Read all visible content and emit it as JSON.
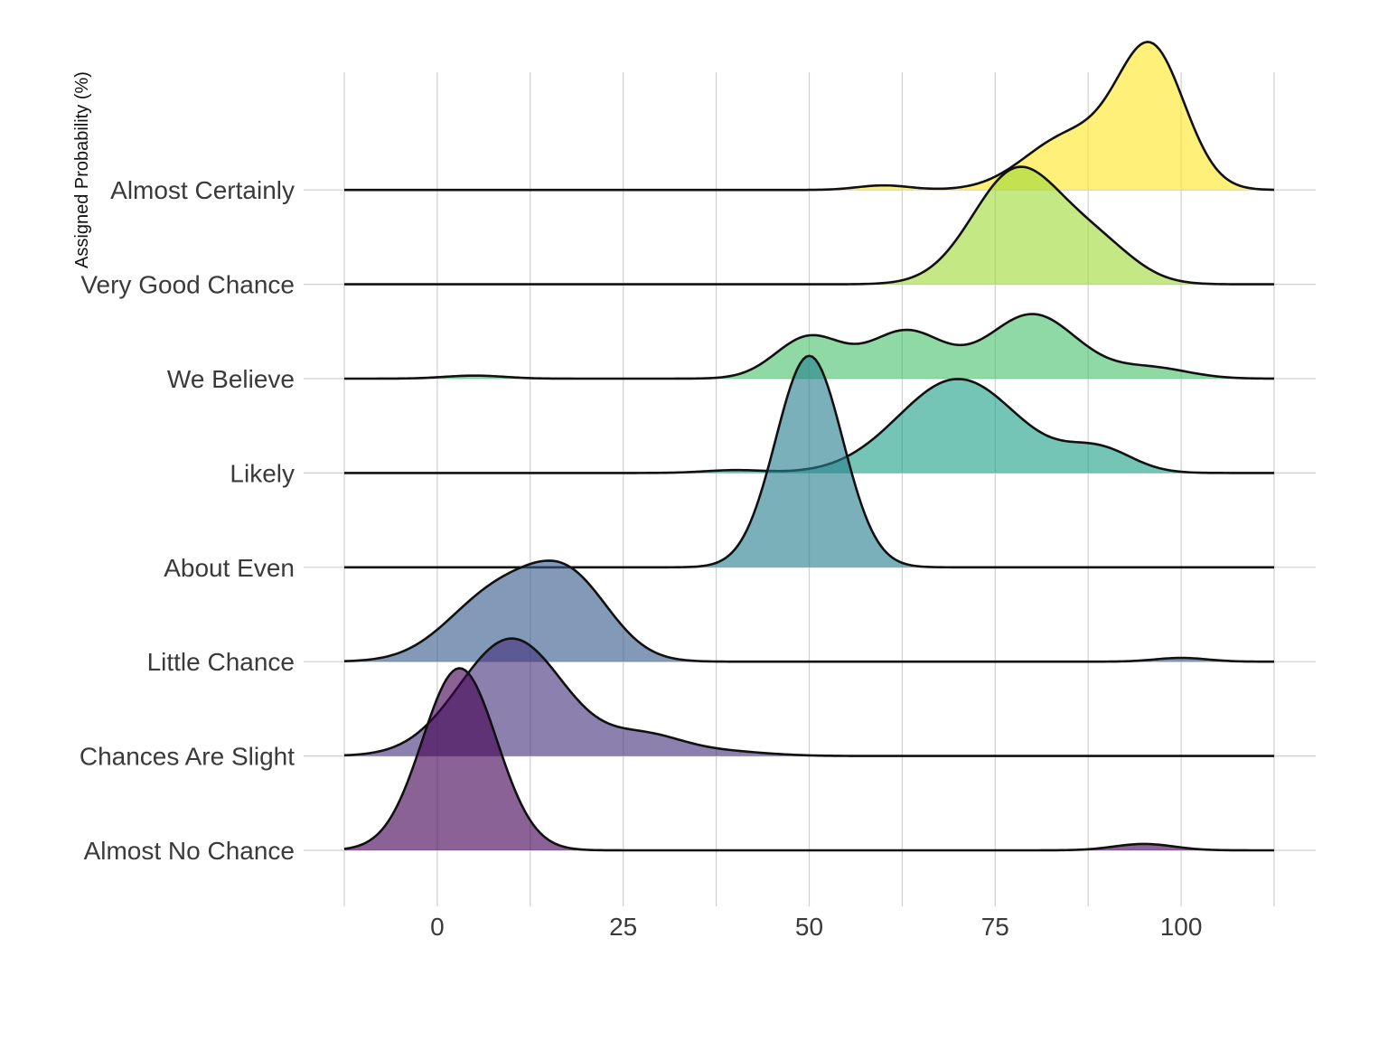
{
  "chart_data": {
    "type": "ridgeline",
    "title": "",
    "xlabel": "",
    "ylabel": "Assigned Probability (%)",
    "xlim": [
      -12.5,
      112.5
    ],
    "x_ticks": [
      0,
      25,
      50,
      75,
      100
    ],
    "x_tick_labels": [
      "0",
      "25",
      "50",
      "75",
      "100"
    ],
    "grid": true,
    "legend": "none",
    "categories": [
      "Almost No Chance",
      "Chances Are Slight",
      "Little Chance",
      "About Even",
      "Likely",
      "We Believe",
      "Very Good Chance",
      "Almost Certainly"
    ],
    "colors": [
      "#440154",
      "#46327e",
      "#365c8d",
      "#277f8e",
      "#1fa187",
      "#4ac16d",
      "#a0da39",
      "#fde725"
    ],
    "series": [
      {
        "name": "Almost No Chance",
        "peak_height": 1.55,
        "components": [
          {
            "mu": 3,
            "sd": 5,
            "w": 1.0
          },
          {
            "mu": 95,
            "sd": 4,
            "w": 0.035
          }
        ]
      },
      {
        "name": "Chances Are Slight",
        "peak_height": 1.0,
        "components": [
          {
            "mu": 10,
            "sd": 7,
            "w": 1.0
          },
          {
            "mu": 28,
            "sd": 5,
            "w": 0.16
          },
          {
            "mu": 38,
            "sd": 6,
            "w": 0.04
          }
        ]
      },
      {
        "name": "Little Chance",
        "peak_height": 0.86,
        "components": [
          {
            "mu": 8,
            "sd": 6.5,
            "w": 0.72
          },
          {
            "mu": 18,
            "sd": 5.5,
            "w": 0.78
          },
          {
            "mu": 100,
            "sd": 3.5,
            "w": 0.04
          }
        ]
      },
      {
        "name": "About Even",
        "peak_height": 1.8,
        "components": [
          {
            "mu": 50,
            "sd": 4.5,
            "w": 1.0
          }
        ]
      },
      {
        "name": "Likely",
        "peak_height": 0.8,
        "components": [
          {
            "mu": 40,
            "sd": 4,
            "w": 0.03
          },
          {
            "mu": 70,
            "sd": 8,
            "w": 1.0
          },
          {
            "mu": 89,
            "sd": 4.5,
            "w": 0.24
          }
        ]
      },
      {
        "name": "We Believe",
        "peak_height": 0.55,
        "components": [
          {
            "mu": 5,
            "sd": 4,
            "w": 0.04
          },
          {
            "mu": 50,
            "sd": 4.5,
            "w": 0.55
          },
          {
            "mu": 63,
            "sd": 5,
            "w": 0.62
          },
          {
            "mu": 80,
            "sd": 6,
            "w": 0.85
          },
          {
            "mu": 96,
            "sd": 5,
            "w": 0.14
          }
        ]
      },
      {
        "name": "Very Good Chance",
        "peak_height": 1.0,
        "components": [
          {
            "mu": 78,
            "sd": 6,
            "w": 1.0
          },
          {
            "mu": 89,
            "sd": 5,
            "w": 0.3
          }
        ]
      },
      {
        "name": "Almost Certainly",
        "peak_height": 1.26,
        "components": [
          {
            "mu": 60,
            "sd": 3.5,
            "w": 0.03
          },
          {
            "mu": 85,
            "sd": 6,
            "w": 0.35
          },
          {
            "mu": 96,
            "sd": 4.5,
            "w": 0.9
          }
        ]
      }
    ]
  }
}
